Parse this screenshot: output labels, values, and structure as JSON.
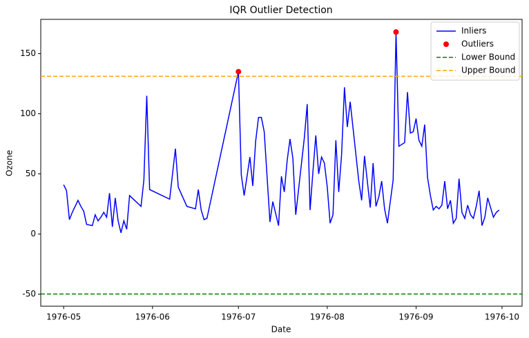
{
  "chart_data": {
    "type": "line",
    "title": "IQR Outlier Detection",
    "x_label": "Date",
    "y_label": "Ozone",
    "xlim": [
      "1976-04-23",
      "1976-10-08"
    ],
    "xticks": [
      {
        "value": "1976-05-01",
        "label": "1976-05"
      },
      {
        "value": "1976-06-01",
        "label": "1976-06"
      },
      {
        "value": "1976-07-01",
        "label": "1976-07"
      },
      {
        "value": "1976-08-01",
        "label": "1976-08"
      },
      {
        "value": "1976-09-01",
        "label": "1976-09"
      },
      {
        "value": "1976-10-01",
        "label": "1976-10"
      }
    ],
    "ylim": [
      -60,
      178.5
    ],
    "yticks": [
      -50,
      0,
      50,
      100,
      150
    ],
    "grid": false,
    "legend": "upper right",
    "series": [
      {
        "name": "Inliers",
        "color": "#0000ff",
        "style": "line",
        "x": [
          "1976-05-01",
          "1976-05-02",
          "1976-05-03",
          "1976-05-04",
          "1976-05-06",
          "1976-05-07",
          "1976-05-08",
          "1976-05-09",
          "1976-05-11",
          "1976-05-12",
          "1976-05-13",
          "1976-05-14",
          "1976-05-15",
          "1976-05-16",
          "1976-05-17",
          "1976-05-18",
          "1976-05-19",
          "1976-05-20",
          "1976-05-21",
          "1976-05-22",
          "1976-05-23",
          "1976-05-24",
          "1976-05-28",
          "1976-05-29",
          "1976-05-30",
          "1976-05-31",
          "1976-06-07",
          "1976-06-09",
          "1976-06-10",
          "1976-06-13",
          "1976-06-16",
          "1976-06-17",
          "1976-06-18",
          "1976-06-19",
          "1976-06-20",
          "1976-07-01",
          "1976-07-02",
          "1976-07-03",
          "1976-07-05",
          "1976-07-06",
          "1976-07-07",
          "1976-07-08",
          "1976-07-09",
          "1976-07-10",
          "1976-07-12",
          "1976-07-13",
          "1976-07-15",
          "1976-07-16",
          "1976-07-17",
          "1976-07-18",
          "1976-07-19",
          "1976-07-20",
          "1976-07-21",
          "1976-07-24",
          "1976-07-25",
          "1976-07-26",
          "1976-07-27",
          "1976-07-28",
          "1976-07-29",
          "1976-07-30",
          "1976-07-31",
          "1976-08-01",
          "1976-08-02",
          "1976-08-03",
          "1976-08-04",
          "1976-08-05",
          "1976-08-06",
          "1976-08-07",
          "1976-08-08",
          "1976-08-09",
          "1976-08-12",
          "1976-08-13",
          "1976-08-14",
          "1976-08-16",
          "1976-08-17",
          "1976-08-18",
          "1976-08-19",
          "1976-08-20",
          "1976-08-21",
          "1976-08-22",
          "1976-08-24",
          "1976-08-25",
          "1976-08-26",
          "1976-08-28",
          "1976-08-29",
          "1976-08-30",
          "1976-08-31",
          "1976-09-01",
          "1976-09-02",
          "1976-09-03",
          "1976-09-04",
          "1976-09-05",
          "1976-09-06",
          "1976-09-07",
          "1976-09-08",
          "1976-09-09",
          "1976-09-10",
          "1976-09-11",
          "1976-09-12",
          "1976-09-13",
          "1976-09-14",
          "1976-09-15",
          "1976-09-16",
          "1976-09-17",
          "1976-09-18",
          "1976-09-19",
          "1976-09-20",
          "1976-09-21",
          "1976-09-22",
          "1976-09-23",
          "1976-09-24",
          "1976-09-25",
          "1976-09-26",
          "1976-09-28",
          "1976-09-29",
          "1976-09-30"
        ],
        "values": [
          41,
          36,
          12,
          18,
          28,
          23,
          19,
          8,
          7,
          16,
          11,
          14,
          18,
          14,
          34,
          6,
          30,
          11,
          1,
          11,
          4,
          32,
          23,
          45,
          115,
          37,
          29,
          71,
          39,
          23,
          21,
          37,
          20,
          12,
          13,
          135,
          49,
          32,
          64,
          40,
          77,
          97,
          97,
          85,
          10,
          27,
          7,
          48,
          35,
          61,
          79,
          63,
          16,
          80,
          108,
          20,
          52,
          82,
          50,
          64,
          59,
          39,
          9,
          16,
          78,
          35,
          66,
          122,
          89,
          110,
          44,
          28,
          65,
          22,
          59,
          23,
          31,
          44,
          21,
          9,
          45,
          168,
          73,
          76,
          118,
          84,
          85,
          96,
          78,
          73,
          91,
          47,
          32,
          20,
          23,
          21,
          24,
          44,
          21,
          28,
          9,
          13,
          46,
          18,
          13,
          24,
          16,
          13,
          23,
          36,
          7,
          14,
          30,
          14,
          18,
          20
        ]
      },
      {
        "name": "Outliers",
        "color": "#ff0000",
        "style": "scatter",
        "x": [
          "1976-07-01",
          "1976-08-25"
        ],
        "values": [
          135,
          168
        ]
      },
      {
        "name": "Lower Bound",
        "color": "#008000",
        "style": "hline",
        "value": -49.875
      },
      {
        "name": "Upper Bound",
        "color": "#ffa500",
        "style": "hline",
        "value": 131.125
      }
    ]
  }
}
